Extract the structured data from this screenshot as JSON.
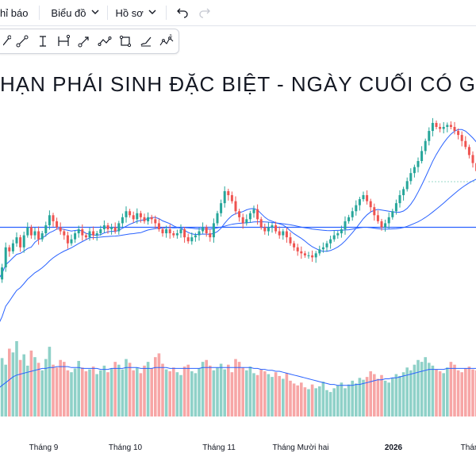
{
  "toolbar": {
    "indicators_label": "hỉ báo",
    "chart_menu_label": "Biểu đồ",
    "profile_menu_label": "Hồ sơ"
  },
  "drawing_tools": [
    "trend-line",
    "ray",
    "vertical-line",
    "range",
    "arrow",
    "path",
    "rectangle",
    "brush",
    "wave"
  ],
  "title": "HẠN PHÁI SINH ĐẶC BIỆT - NGÀY CUỐI CÓ GI",
  "chart_data": {
    "type": "candlestick",
    "title": "HẠN PHÁI SINH ĐẶC BIỆT - NGÀY CUỐI CÓ GI",
    "x_tick_labels": [
      "Tháng 9",
      "Tháng 10",
      "Tháng 11",
      "Tháng Mười hai",
      "2026",
      "Thán"
    ],
    "colors": {
      "up": "#26a69a",
      "down": "#ef5350",
      "up_volume": "#8fd1c8",
      "down_volume": "#f7a6a6",
      "ma_fast": "#2962ff",
      "ma_slow": "#2962ff",
      "hline": "#2962ff"
    },
    "horizontal_line": 100,
    "ylim": [
      0,
      160
    ],
    "closes": [
      74,
      80,
      90,
      88,
      92,
      95,
      90,
      96,
      100,
      96,
      98,
      94,
      97,
      101,
      106,
      103,
      100,
      98,
      96,
      92,
      94,
      97,
      99,
      96,
      95,
      98,
      96,
      97,
      99,
      101,
      99,
      100,
      98,
      102,
      105,
      108,
      106,
      104,
      107,
      105,
      103,
      105,
      104,
      102,
      99,
      97,
      99,
      97,
      96,
      97,
      99,
      95,
      93,
      95,
      96,
      98,
      100,
      97,
      95,
      102,
      107,
      112,
      118,
      116,
      113,
      108,
      105,
      102,
      104,
      107,
      109,
      104,
      100,
      98,
      100,
      101,
      98,
      96,
      98,
      95,
      92,
      90,
      88,
      87,
      86,
      86,
      85,
      87,
      89,
      90,
      92,
      94,
      96,
      97,
      99,
      103,
      105,
      108,
      111,
      114,
      116,
      113,
      110,
      106,
      103,
      100,
      102,
      105,
      108,
      112,
      116,
      119,
      123,
      127,
      130,
      133,
      138,
      143,
      148,
      152,
      150,
      149,
      150,
      151,
      150,
      148,
      146,
      143,
      140,
      136,
      132,
      128
    ],
    "volumes": [
      58,
      62,
      55,
      72,
      68,
      80,
      60,
      66,
      54,
      70,
      63,
      57,
      49,
      61,
      74,
      55,
      52,
      60,
      58,
      49,
      47,
      51,
      59,
      52,
      48,
      50,
      53,
      45,
      49,
      54,
      47,
      51,
      58,
      55,
      50,
      61,
      57,
      49,
      52,
      46,
      54,
      58,
      51,
      63,
      67,
      56,
      50,
      48,
      52,
      47,
      44,
      53,
      55,
      48,
      46,
      51,
      58,
      60,
      54,
      49,
      52,
      56,
      50,
      55,
      47,
      61,
      58,
      52,
      49,
      53,
      46,
      44,
      50,
      48,
      45,
      42,
      47,
      43,
      40,
      46,
      38,
      35,
      33,
      36,
      31,
      29,
      34,
      30,
      32,
      37,
      28,
      26,
      30,
      33,
      36,
      30,
      34,
      38,
      35,
      41,
      39,
      42,
      48,
      45,
      40,
      44,
      38,
      36,
      41,
      45,
      43,
      47,
      52,
      49,
      55,
      60,
      58,
      63,
      57,
      54,
      50,
      48,
      46,
      52,
      58,
      55,
      49,
      47,
      51,
      53,
      50,
      49
    ],
    "volume_ma": [
      30,
      33,
      36,
      39,
      42,
      44,
      45,
      46,
      47,
      48,
      49,
      50,
      51,
      51,
      52,
      52,
      53,
      53,
      53,
      53,
      52,
      52,
      52,
      51,
      51,
      51,
      51,
      51,
      50,
      50,
      50,
      51,
      51,
      51,
      51,
      52,
      52,
      52,
      52,
      51,
      51,
      51,
      51,
      52,
      52,
      52,
      52,
      51,
      51,
      51,
      51,
      51,
      51,
      51,
      51,
      51,
      52,
      52,
      52,
      52,
      52,
      52,
      52,
      52,
      52,
      52,
      52,
      52,
      52,
      52,
      51,
      51,
      50,
      50,
      49,
      49,
      48,
      48,
      47,
      46,
      45,
      44,
      43,
      42,
      41,
      40,
      39,
      38,
      37,
      36,
      35,
      34,
      34,
      33,
      33,
      33,
      33,
      33,
      34,
      34,
      35,
      36,
      37,
      38,
      39,
      39,
      40,
      40,
      41,
      41,
      42,
      43,
      44,
      45,
      46,
      47,
      48,
      49,
      50,
      50,
      50,
      50,
      50,
      51,
      51,
      51,
      51,
      51,
      51,
      51,
      51,
      51
    ]
  }
}
